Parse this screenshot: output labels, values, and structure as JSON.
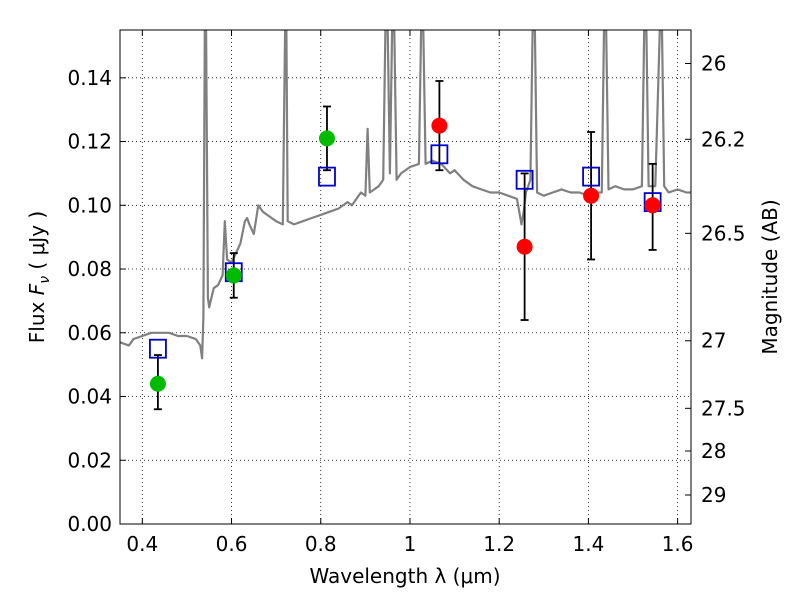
{
  "chart_data": {
    "type": "scatter",
    "xlabel": "Wavelength  λ (μm)",
    "ylabel": "Flux  F_ν  ( μJy )",
    "ylabel_parts": {
      "prefix": "Flux  ",
      "var": "F",
      "sub": "ν",
      "suffix": "  ( μJy )"
    },
    "y2label": "Magnitude (AB)",
    "xlim": [
      0.35,
      1.63
    ],
    "ylim": [
      0.0,
      0.155
    ],
    "grid": true,
    "legend": "none",
    "x_ticks": [
      0.4,
      0.6,
      0.8,
      1.0,
      1.2,
      1.4,
      1.6
    ],
    "x_tick_labels": [
      "0.4",
      "0.6",
      "0.8",
      "1",
      "1.2",
      "1.4",
      "1.6"
    ],
    "y_ticks": [
      0.0,
      0.02,
      0.04,
      0.06,
      0.08,
      0.1,
      0.12,
      0.14
    ],
    "y_tick_labels": [
      "0.00",
      "0.02",
      "0.04",
      "0.06",
      "0.08",
      "0.10",
      "0.12",
      "0.14"
    ],
    "mag_ticks": [
      {
        "flux": 0.1445,
        "label": "26"
      },
      {
        "flux": 0.1207,
        "label": "26.2"
      },
      {
        "flux": 0.0912,
        "label": "26.5"
      },
      {
        "flux": 0.0575,
        "label": "27"
      },
      {
        "flux": 0.0363,
        "label": "27.5"
      },
      {
        "flux": 0.0229,
        "label": "28"
      },
      {
        "flux": 0.0091,
        "label": "29"
      }
    ],
    "series": [
      {
        "kind": "line",
        "color": "#808080",
        "points": [
          [
            0.35,
            0.057
          ],
          [
            0.37,
            0.056
          ],
          [
            0.38,
            0.058
          ],
          [
            0.4,
            0.059
          ],
          [
            0.42,
            0.06
          ],
          [
            0.44,
            0.06
          ],
          [
            0.46,
            0.06
          ],
          [
            0.48,
            0.059
          ],
          [
            0.5,
            0.059
          ],
          [
            0.52,
            0.058
          ],
          [
            0.53,
            0.056
          ],
          [
            0.534,
            0.052
          ],
          [
            0.537,
            0.065
          ],
          [
            0.54,
            0.155
          ],
          [
            0.543,
            0.155
          ],
          [
            0.547,
            0.071
          ],
          [
            0.55,
            0.068
          ],
          [
            0.56,
            0.074
          ],
          [
            0.57,
            0.075
          ],
          [
            0.58,
            0.078
          ],
          [
            0.585,
            0.095
          ],
          [
            0.59,
            0.083
          ],
          [
            0.6,
            0.082
          ],
          [
            0.62,
            0.088
          ],
          [
            0.63,
            0.095
          ],
          [
            0.635,
            0.096
          ],
          [
            0.64,
            0.094
          ],
          [
            0.65,
            0.091
          ],
          [
            0.66,
            0.1
          ],
          [
            0.67,
            0.098
          ],
          [
            0.68,
            0.097
          ],
          [
            0.7,
            0.095
          ],
          [
            0.715,
            0.094
          ],
          [
            0.72,
            0.155
          ],
          [
            0.723,
            0.155
          ],
          [
            0.726,
            0.095
          ],
          [
            0.74,
            0.094
          ],
          [
            0.76,
            0.095
          ],
          [
            0.78,
            0.096
          ],
          [
            0.8,
            0.097
          ],
          [
            0.82,
            0.098
          ],
          [
            0.84,
            0.099
          ],
          [
            0.86,
            0.101
          ],
          [
            0.87,
            0.1
          ],
          [
            0.88,
            0.102
          ],
          [
            0.89,
            0.104
          ],
          [
            0.9,
            0.103
          ],
          [
            0.905,
            0.124
          ],
          [
            0.91,
            0.104
          ],
          [
            0.93,
            0.106
          ],
          [
            0.94,
            0.108
          ],
          [
            0.945,
            0.155
          ],
          [
            0.95,
            0.155
          ],
          [
            0.955,
            0.11
          ],
          [
            0.96,
            0.155
          ],
          [
            0.965,
            0.155
          ],
          [
            0.97,
            0.108
          ],
          [
            0.98,
            0.11
          ],
          [
            1.0,
            0.112
          ],
          [
            1.02,
            0.113
          ],
          [
            1.025,
            0.155
          ],
          [
            1.03,
            0.155
          ],
          [
            1.035,
            0.113
          ],
          [
            1.05,
            0.114
          ],
          [
            1.07,
            0.113
          ],
          [
            1.09,
            0.11
          ],
          [
            1.1,
            0.111
          ],
          [
            1.12,
            0.108
          ],
          [
            1.14,
            0.106
          ],
          [
            1.16,
            0.105
          ],
          [
            1.18,
            0.104
          ],
          [
            1.2,
            0.104
          ],
          [
            1.22,
            0.103
          ],
          [
            1.24,
            0.102
          ],
          [
            1.25,
            0.094
          ],
          [
            1.255,
            0.098
          ],
          [
            1.26,
            0.104
          ],
          [
            1.265,
            0.106
          ],
          [
            1.27,
            0.108
          ],
          [
            1.275,
            0.155
          ],
          [
            1.28,
            0.155
          ],
          [
            1.285,
            0.104
          ],
          [
            1.3,
            0.103
          ],
          [
            1.32,
            0.104
          ],
          [
            1.34,
            0.105
          ],
          [
            1.36,
            0.104
          ],
          [
            1.38,
            0.104
          ],
          [
            1.4,
            0.103
          ],
          [
            1.42,
            0.104
          ],
          [
            1.43,
            0.104
          ],
          [
            1.435,
            0.155
          ],
          [
            1.44,
            0.155
          ],
          [
            1.445,
            0.105
          ],
          [
            1.46,
            0.106
          ],
          [
            1.48,
            0.105
          ],
          [
            1.5,
            0.105
          ],
          [
            1.52,
            0.106
          ],
          [
            1.525,
            0.155
          ],
          [
            1.53,
            0.155
          ],
          [
            1.535,
            0.106
          ],
          [
            1.55,
            0.106
          ],
          [
            1.56,
            0.155
          ],
          [
            1.565,
            0.155
          ],
          [
            1.57,
            0.106
          ],
          [
            1.58,
            0.104
          ],
          [
            1.6,
            0.105
          ],
          [
            1.62,
            0.104
          ],
          [
            1.63,
            0.104
          ]
        ]
      },
      {
        "kind": "points",
        "marker": "open-square",
        "color": "#0000cc",
        "points": [
          [
            0.435,
            0.055
          ],
          [
            0.605,
            0.079
          ],
          [
            0.814,
            0.109
          ],
          [
            1.066,
            0.116
          ],
          [
            1.257,
            0.108
          ],
          [
            1.406,
            0.109
          ],
          [
            1.544,
            0.101
          ]
        ]
      },
      {
        "kind": "points",
        "marker": "filled-circle",
        "color": "#00bb00",
        "points": [
          {
            "x": 0.435,
            "y": 0.044,
            "ylo": 0.036,
            "yhi": 0.053
          },
          {
            "x": 0.605,
            "y": 0.078,
            "ylo": 0.071,
            "yhi": 0.085
          },
          {
            "x": 0.814,
            "y": 0.121,
            "ylo": 0.111,
            "yhi": 0.131
          }
        ]
      },
      {
        "kind": "points",
        "marker": "filled-circle",
        "color": "#ff0000",
        "points": [
          {
            "x": 1.066,
            "y": 0.125,
            "ylo": 0.111,
            "yhi": 0.139
          },
          {
            "x": 1.257,
            "y": 0.087,
            "ylo": 0.064,
            "yhi": 0.11
          },
          {
            "x": 1.406,
            "y": 0.103,
            "ylo": 0.083,
            "yhi": 0.123
          },
          {
            "x": 1.544,
            "y": 0.1,
            "ylo": 0.086,
            "yhi": 0.113
          }
        ]
      }
    ]
  }
}
